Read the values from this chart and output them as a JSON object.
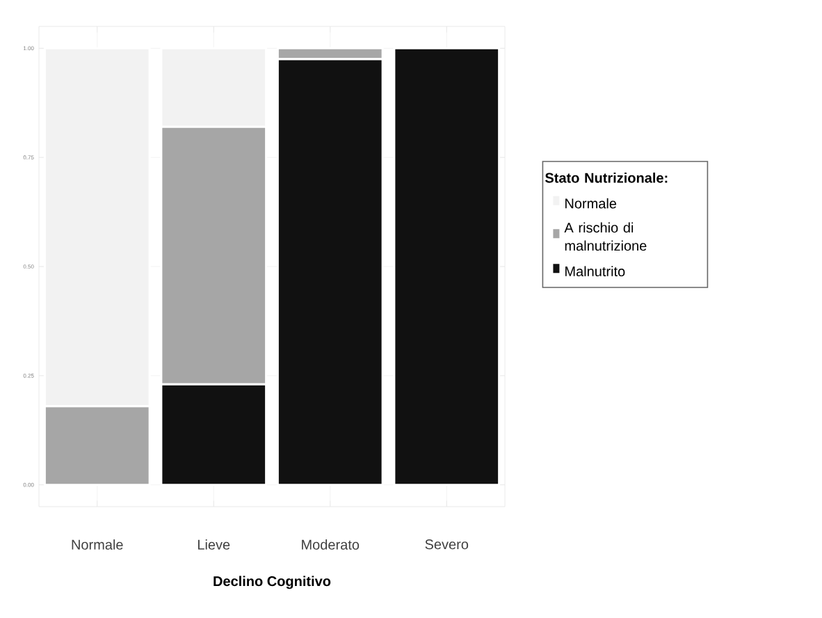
{
  "chart_data": {
    "type": "bar",
    "stacked": true,
    "xlabel": "Declino Cognitivo",
    "legend_title": "Stato Nutrizionale:",
    "legend": "right",
    "grid": true,
    "categories": [
      "Normale",
      "Lieve",
      "Moderato",
      "Severo"
    ],
    "ylim": [
      0,
      1
    ],
    "yticks": [
      {
        "value": 0,
        "label": "0.00"
      },
      {
        "value": 0.25,
        "label": "0.25"
      },
      {
        "value": 0.5,
        "label": "0.50"
      },
      {
        "value": 0.75,
        "label": "0.75"
      },
      {
        "value": 1,
        "label": "1.00"
      }
    ],
    "series": [
      {
        "name": "Malnutrito",
        "color": "#111111",
        "values": [
          0,
          0.23,
          0.975,
          1.0
        ]
      },
      {
        "name": "A rischio di malnutrizione",
        "color": "#a6a6a6",
        "values": [
          0.18,
          0.59,
          0.025,
          0
        ]
      },
      {
        "name": "Normale",
        "color": "#f2f2f2",
        "values": [
          0.82,
          0.18,
          0,
          0
        ]
      }
    ]
  }
}
